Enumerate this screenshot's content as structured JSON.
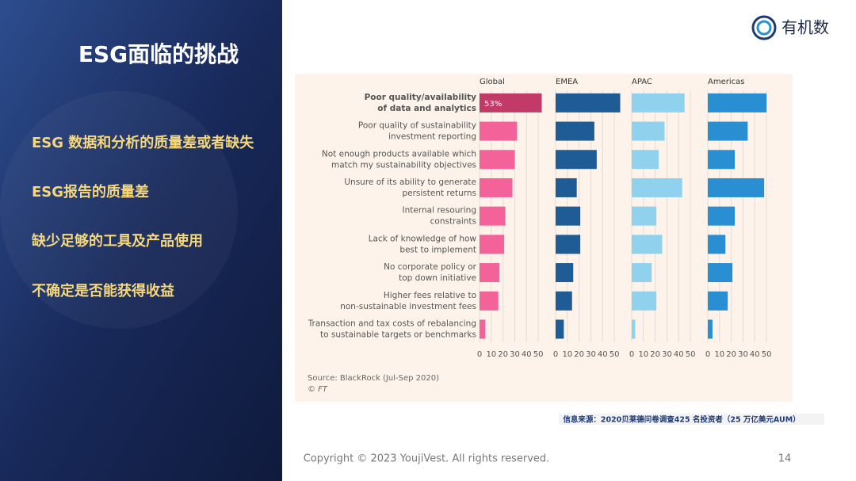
{
  "slide": {
    "title": "ESG面临的挑战",
    "bullets": [
      "ESG 数据和分析的质量差或者缺失",
      "ESG报告的质量差",
      "缺少足够的工具及产品使用",
      "不确定是否能获得收益"
    ],
    "logo": "有机数",
    "info": "信息来源：2020贝莱德问卷调查425 名投资者（25 万亿美元AUM）",
    "copyright": "Copyright © 2023 YoujiVest. All rights reserved.",
    "page": "14"
  },
  "chart_data": {
    "type": "bar",
    "orientation": "horizontal",
    "categories": [
      [
        "Poor quality/availability",
        "of data and analytics"
      ],
      [
        "Poor quality of sustainability",
        "investment reporting"
      ],
      [
        "Not enough products available which",
        "match my sustainability objectives"
      ],
      [
        "Unsure of its ability to generate",
        "persistent returns"
      ],
      [
        "Internal resouring",
        "constraints"
      ],
      [
        "Lack of knowledge of how",
        "best to implement"
      ],
      [
        "No corporate policy or",
        "top down initiative"
      ],
      [
        "Higher fees relative to",
        "non-sustainable investment fees"
      ],
      [
        "Transaction and tax costs of rebalancing",
        "to sustainable targets or benchmarks"
      ]
    ],
    "series": [
      {
        "name": "Global",
        "color": "#f4629a",
        "colors": [
          "#c23a68",
          "#f4629a",
          "#f4629a",
          "#f4629a",
          "#f4629a",
          "#f4629a",
          "#f4629a",
          "#f4629a",
          "#f4629a"
        ],
        "values": [
          53,
          32,
          30,
          28,
          22,
          21,
          17,
          16,
          5
        ],
        "value_labels": [
          "53%",
          null,
          null,
          null,
          null,
          null,
          null,
          null,
          null
        ]
      },
      {
        "name": "EMEA",
        "color": "#1f5b94",
        "values": [
          55,
          33,
          35,
          18,
          21,
          21,
          15,
          14,
          7
        ]
      },
      {
        "name": "APAC",
        "color": "#90d2ee",
        "values": [
          45,
          28,
          23,
          43,
          21,
          26,
          17,
          21,
          3
        ]
      },
      {
        "name": "Americas",
        "color": "#2a8fd2",
        "values": [
          50,
          34,
          23,
          48,
          23,
          15,
          21,
          17,
          4
        ]
      }
    ],
    "xlim": [
      0,
      55
    ],
    "xticks": [
      0,
      10,
      20,
      30,
      40,
      50
    ],
    "grid": true,
    "source": "Source: BlackRock (Jul-Sep 2020)",
    "credit": "© FT"
  }
}
